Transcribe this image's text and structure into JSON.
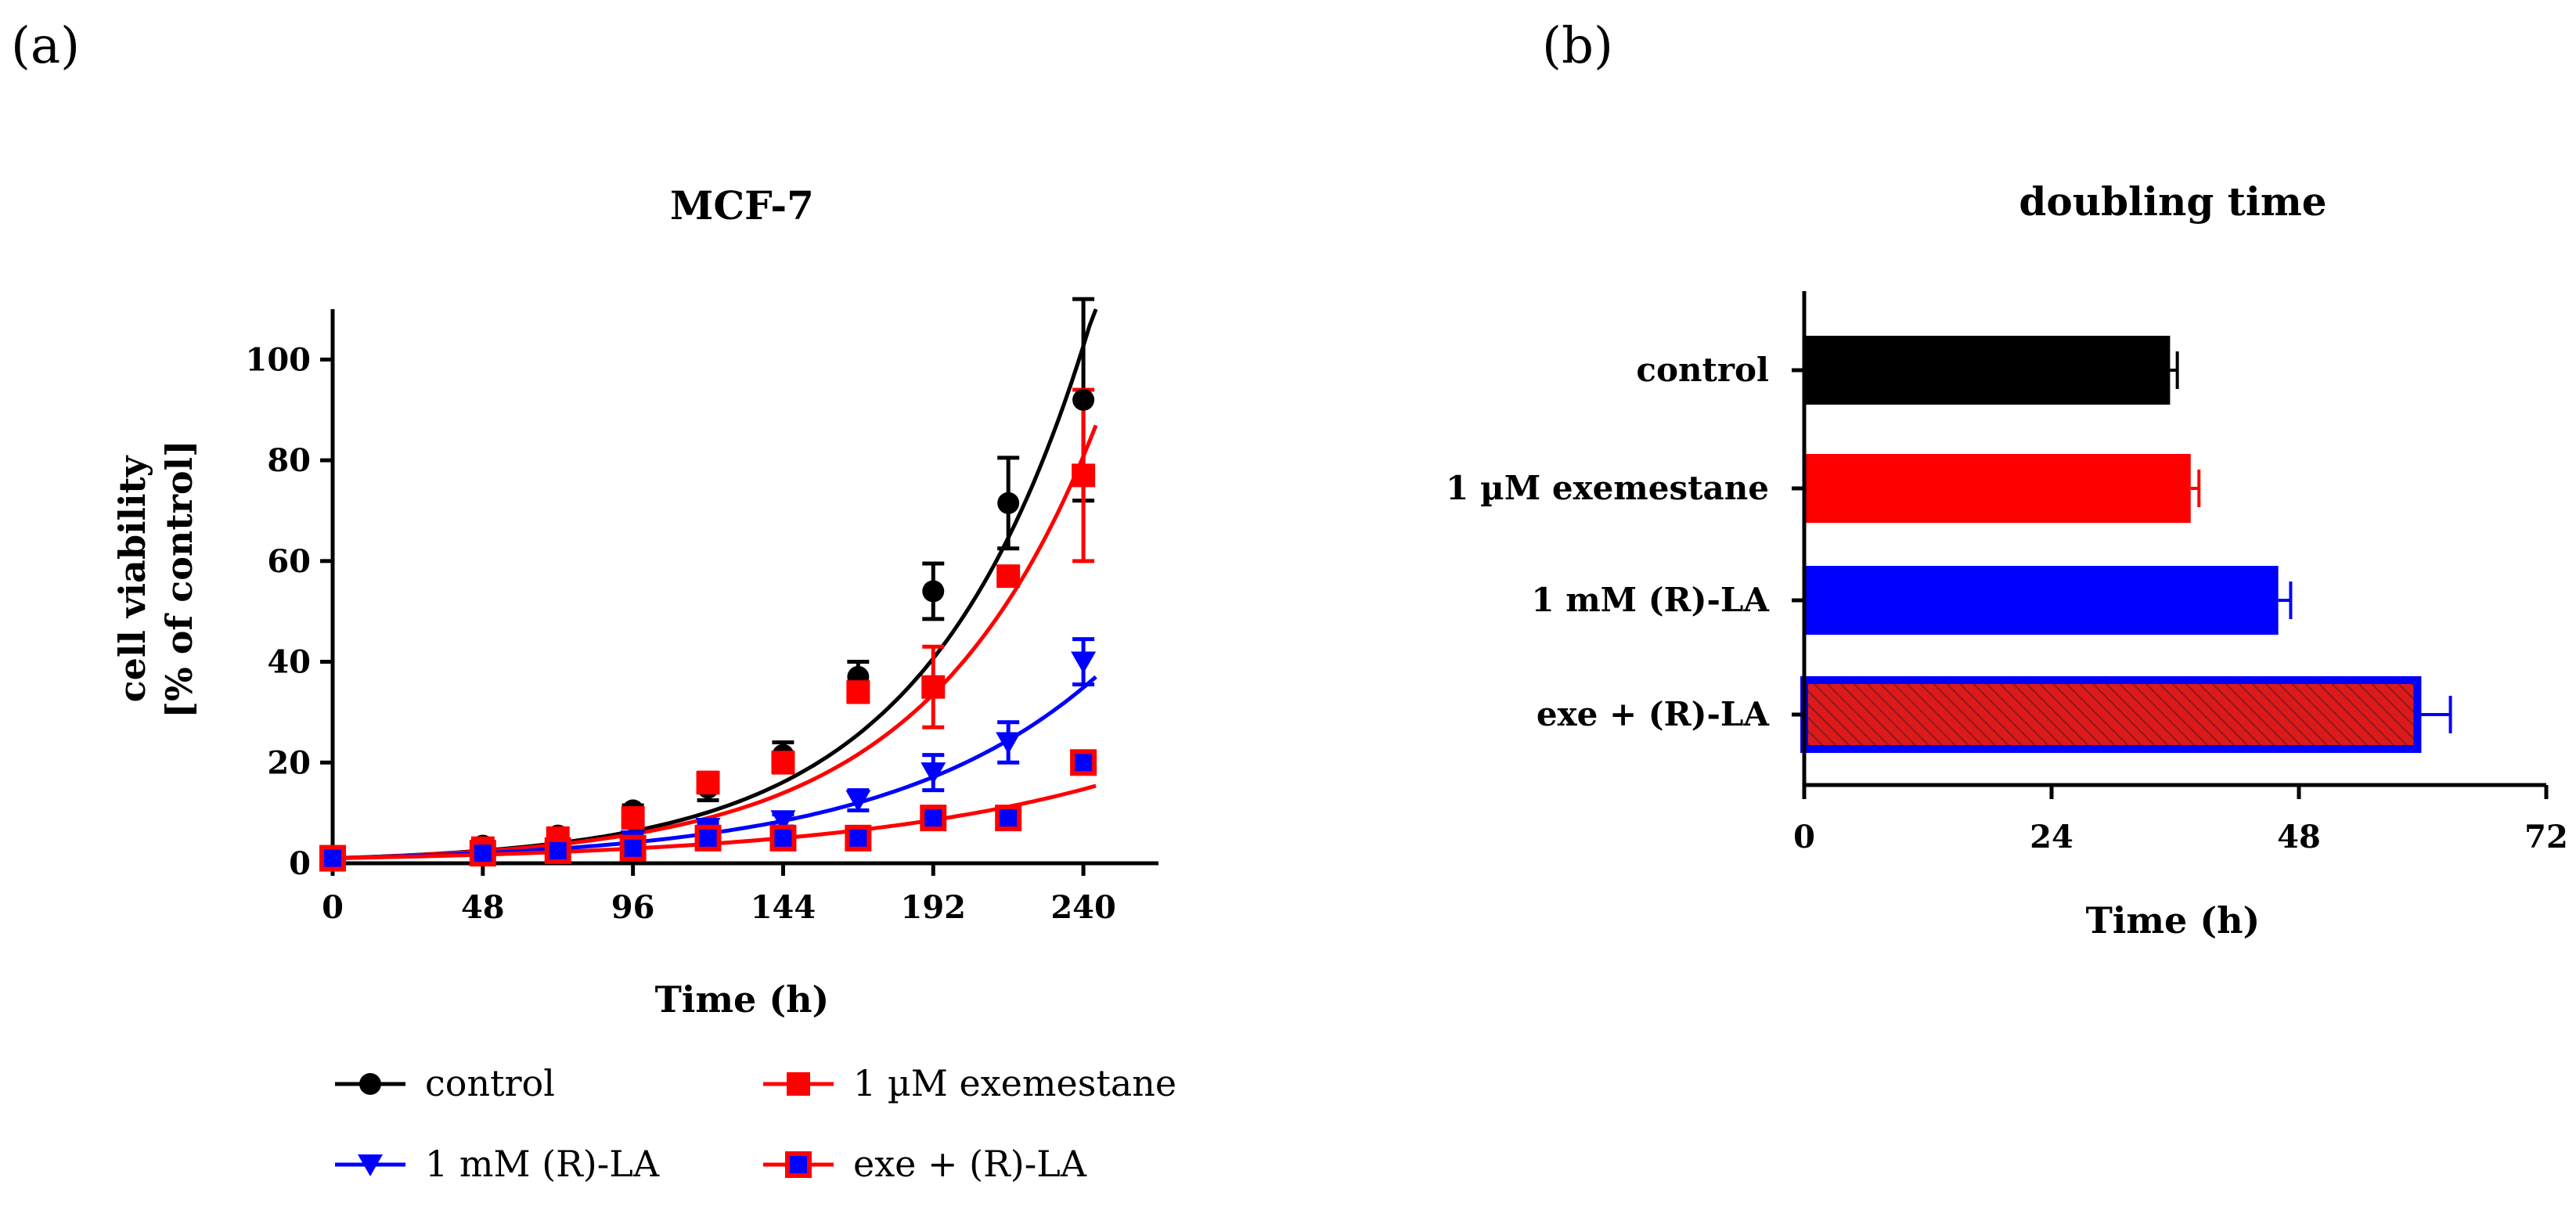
{
  "panels": {
    "a_label": "(a)",
    "b_label": "(b)"
  },
  "chart_data": [
    {
      "type": "scatter",
      "title": "MCF-7",
      "xlabel": "Time (h)",
      "ylabel_line1": "cell viability",
      "ylabel_line2": "[% of control]",
      "xlim": [
        0,
        264
      ],
      "ylim": [
        0,
        110
      ],
      "xticks": [
        0,
        48,
        96,
        144,
        192,
        240
      ],
      "yticks": [
        0,
        20,
        40,
        60,
        80,
        100
      ],
      "x": [
        0,
        48,
        72,
        96,
        120,
        144,
        168,
        192,
        216,
        240
      ],
      "series": [
        {
          "name": "control",
          "color": "#000000",
          "marker": "circle",
          "values": [
            1,
            3.5,
            5.5,
            10.5,
            15,
            21.5,
            37,
            54,
            71.5,
            92
          ],
          "errors": [
            0.5,
            1,
            1,
            1,
            2.5,
            2.5,
            3,
            5.5,
            9,
            20
          ],
          "fit_rate": 0.0193
        },
        {
          "name": "1 µM exemestane",
          "color": "#ff0000",
          "marker": "square",
          "values": [
            1,
            3,
            5,
            9,
            16,
            20,
            34,
            35,
            57,
            77
          ],
          "errors": [
            0.5,
            0.8,
            0.8,
            1.5,
            2,
            2,
            2,
            8,
            1,
            17
          ],
          "fit_rate": 0.0183
        },
        {
          "name": "1 mM (R)-LA",
          "color": "#0000ff",
          "marker": "triangle-down",
          "values": [
            1,
            2.5,
            3,
            4.5,
            7,
            8.5,
            12.5,
            18,
            24,
            40
          ],
          "errors": [
            0.3,
            0.5,
            0.6,
            0.8,
            1,
            1.2,
            2,
            3.5,
            4,
            4.5
          ],
          "fit_rate": 0.0148
        },
        {
          "name": "exe + (R)-LA",
          "color": "#0000ff",
          "edge_color": "#ff0000",
          "marker": "square",
          "values": [
            1,
            2,
            2.5,
            3,
            5,
            5,
            5,
            9,
            9,
            20
          ],
          "errors": [
            0.3,
            0.4,
            0.4,
            0.5,
            0.6,
            0.6,
            0.8,
            1,
            1,
            1.5
          ],
          "fit_rate": 0.0112
        }
      ],
      "legend_position": "bottom"
    },
    {
      "type": "bar",
      "orientation": "horizontal",
      "title": "doubling time",
      "xlabel": "Time (h)",
      "xlim": [
        0,
        72
      ],
      "xticks": [
        0,
        24,
        48,
        72
      ],
      "categories": [
        "control",
        "1 µM exemestane",
        "1 mM (R)-LA",
        "exe + (R)-LA"
      ],
      "values": [
        35.5,
        37.5,
        46,
        59.5
      ],
      "errors": [
        0.7,
        0.8,
        1.2,
        3.2
      ],
      "colors": [
        "#000000",
        "#ff0000",
        "#0000ff",
        "#dd1a1a"
      ],
      "edge_colors": [
        "#000000",
        "#ff0000",
        "#0000ff",
        "#0000ff"
      ],
      "hatched": [
        false,
        false,
        false,
        true
      ],
      "hatch_color": "#8a1a1a"
    }
  ]
}
